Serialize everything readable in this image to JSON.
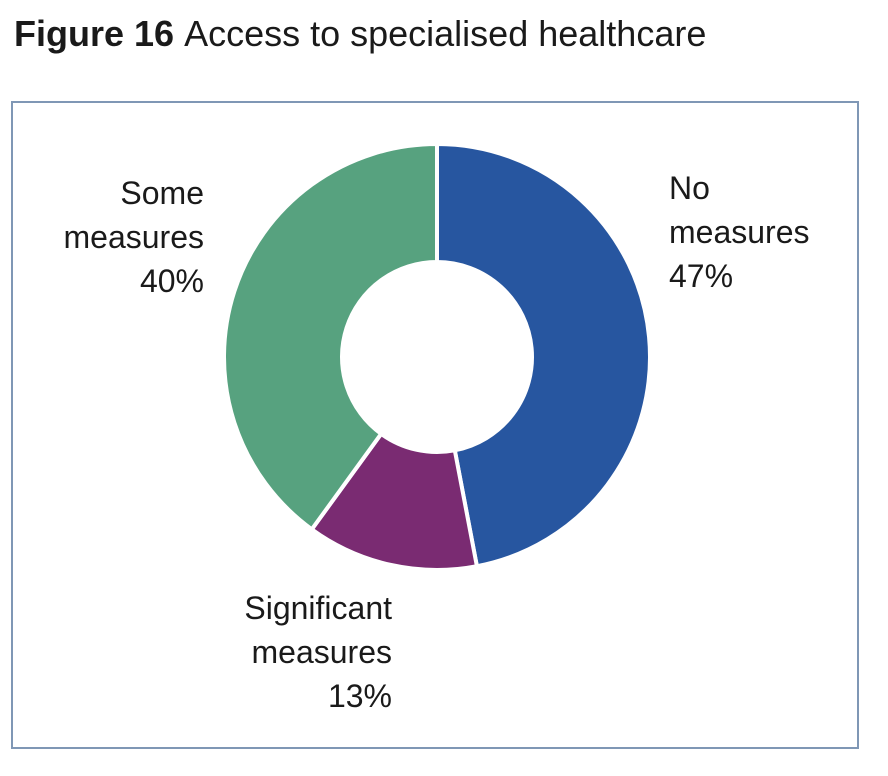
{
  "figure": {
    "number": "Figure 16",
    "title": "Access to specialised healthcare"
  },
  "chart_data": {
    "type": "pie",
    "variant": "donut",
    "title": "Access to specialised healthcare",
    "categories": [
      "No measures",
      "Significant measures",
      "Some measures"
    ],
    "values": [
      47,
      13,
      40
    ],
    "unit": "%",
    "colors": [
      "#2756a0",
      "#7a2b72",
      "#57a27f"
    ],
    "labels": [
      {
        "lines": [
          "No",
          "measures",
          "47%"
        ]
      },
      {
        "lines": [
          "Significant",
          "measures",
          "13%"
        ]
      },
      {
        "lines": [
          "Some",
          "measures",
          "40%"
        ]
      }
    ],
    "legend": "none"
  }
}
